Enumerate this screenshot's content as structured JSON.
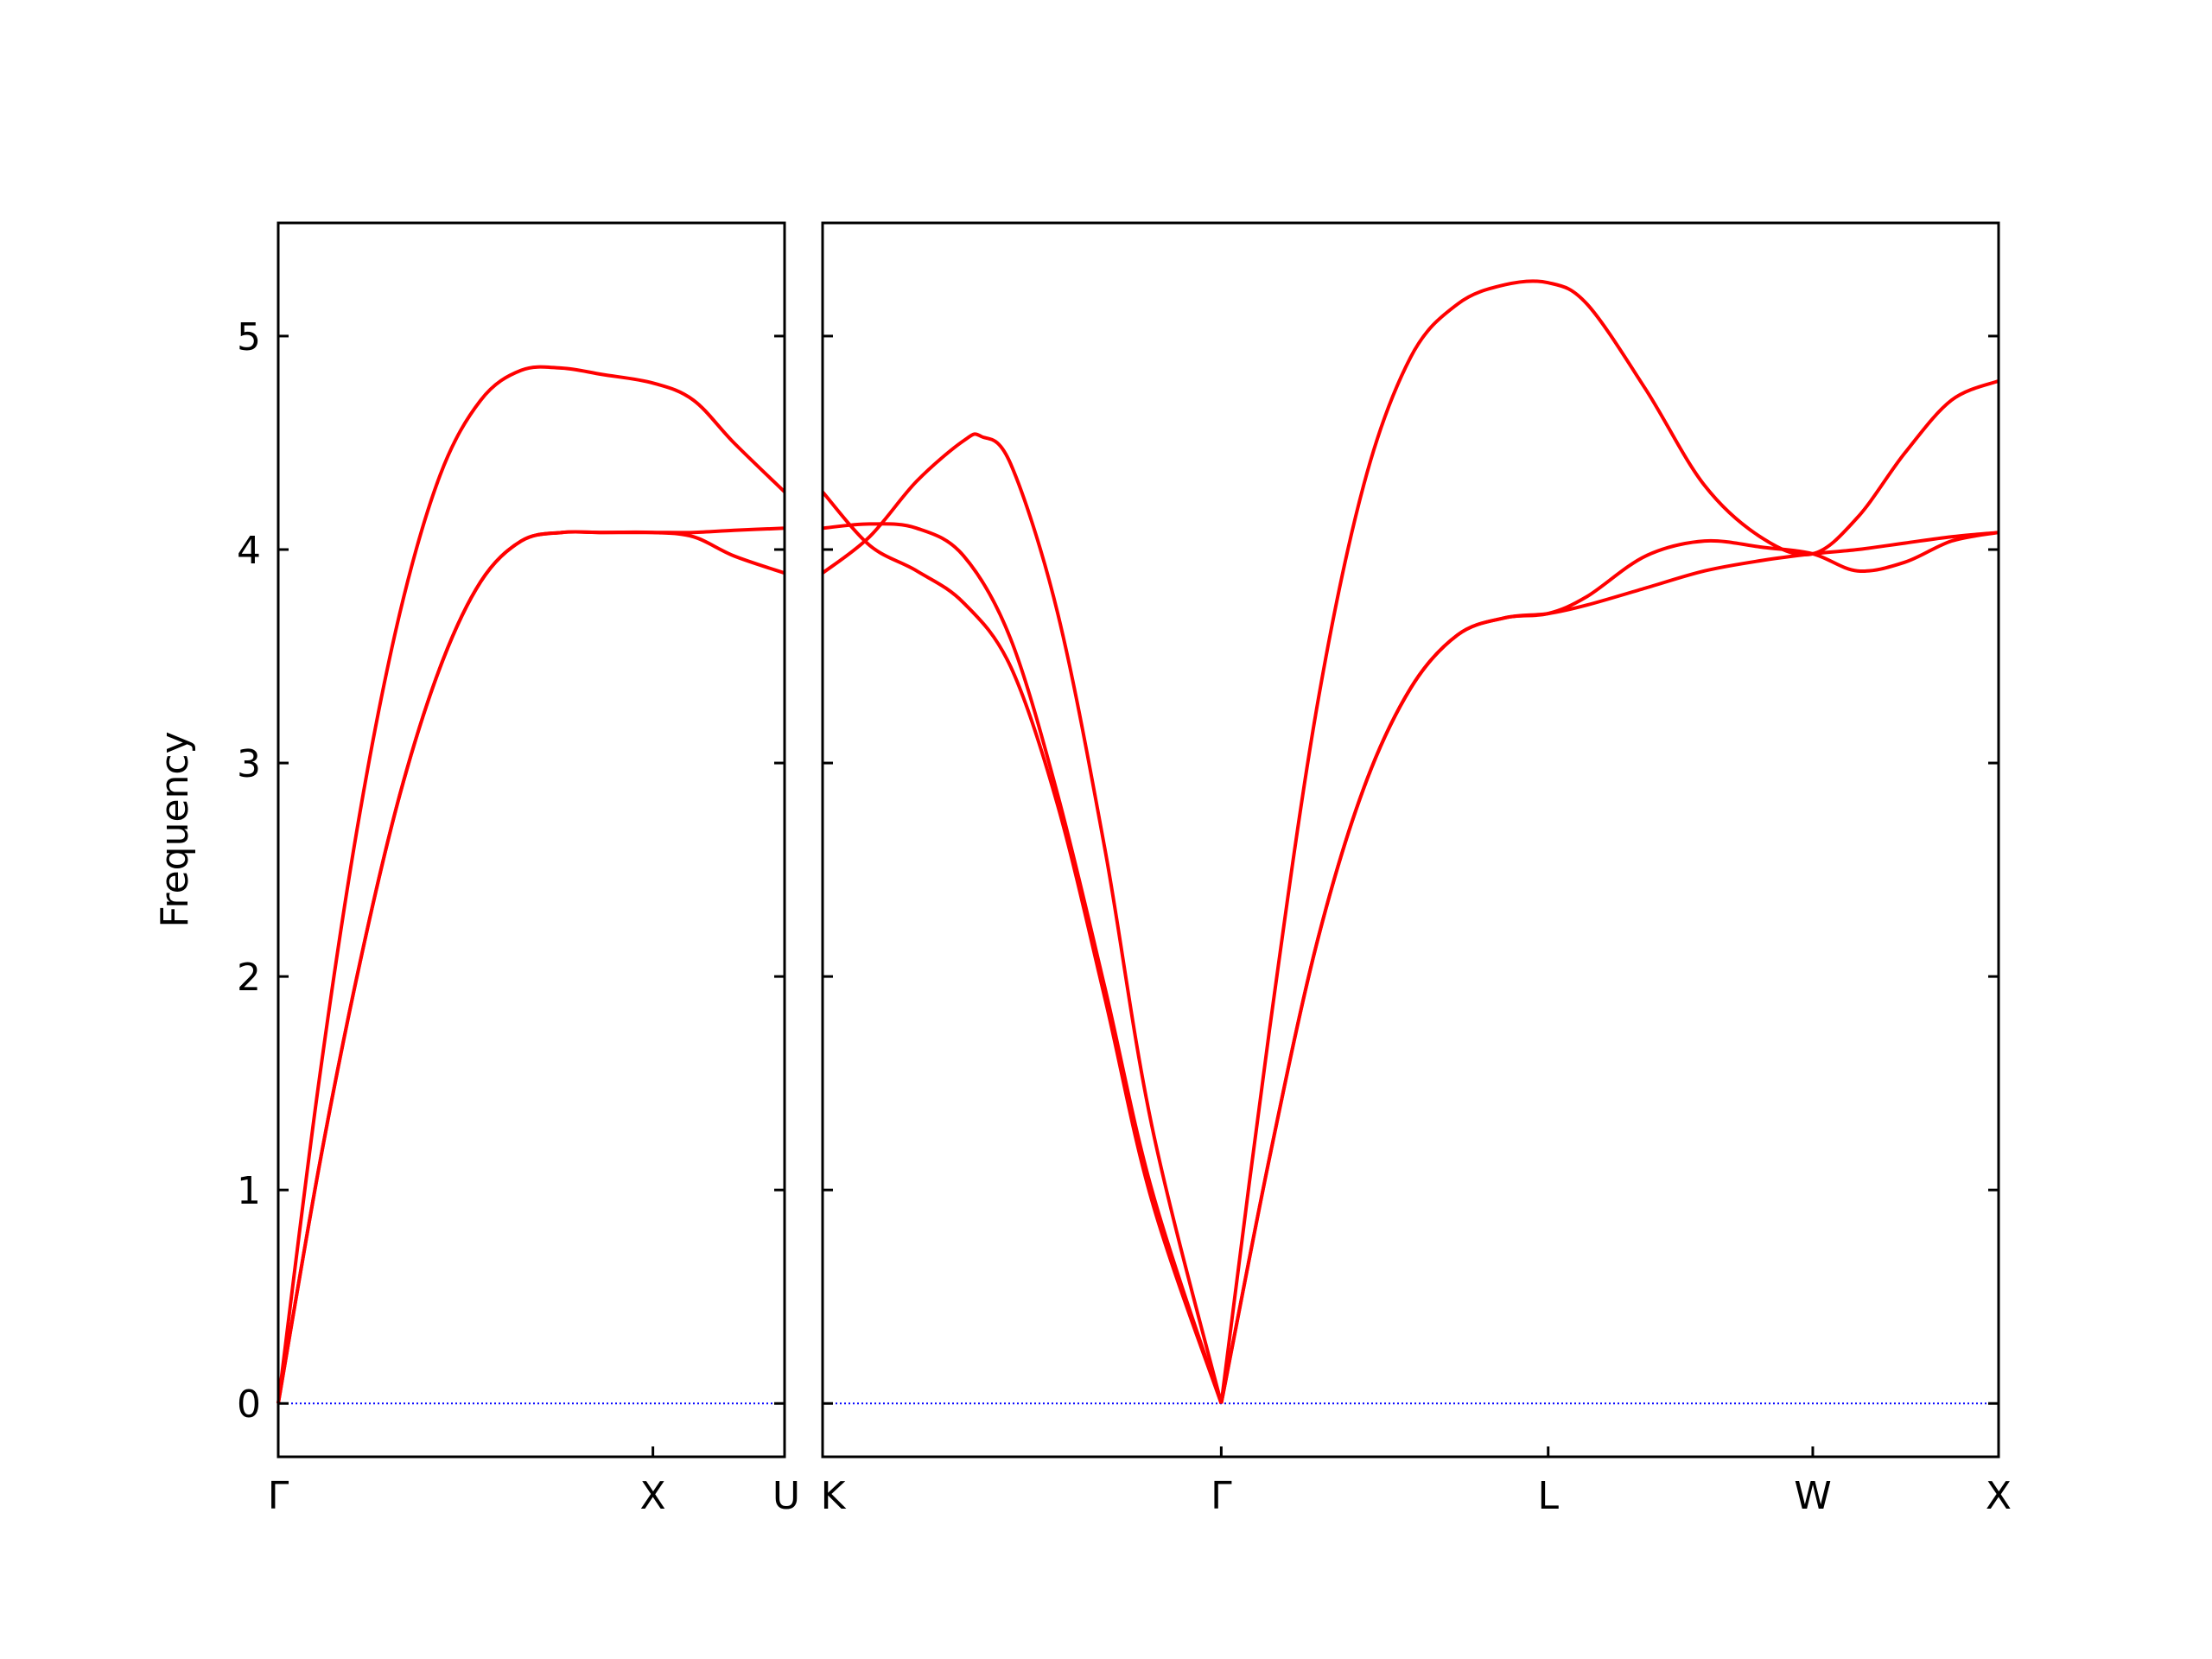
{
  "chart_data": {
    "type": "line",
    "title": "",
    "ylabel": "Frequency",
    "ylim": [
      -0.25,
      5.53
    ],
    "yticks": [
      0,
      1,
      2,
      3,
      4,
      5
    ],
    "colors": {
      "bands": "#ff0000",
      "zero_line": "#0000ff",
      "frame": "#000000"
    },
    "panels": [
      {
        "xlim": [
          0,
          1
        ],
        "ticks": [
          {
            "x": 0,
            "label": "Γ"
          },
          {
            "x": 0.74,
            "label": "X"
          },
          {
            "x": 1,
            "label": "U"
          }
        ],
        "series": [
          {
            "x": [
              0,
              0.08,
              0.16,
              0.24,
              0.32,
              0.4,
              0.48,
              0.56,
              0.64,
              0.74,
              0.82,
              0.9,
              1.0
            ],
            "y": [
              0,
              1.5,
              2.75,
              3.7,
              4.35,
              4.7,
              4.84,
              4.85,
              4.82,
              4.78,
              4.7,
              4.5,
              4.27
            ]
          },
          {
            "x": [
              0,
              0.08,
              0.16,
              0.24,
              0.32,
              0.4,
              0.48,
              0.56,
              0.64,
              0.74,
              0.82,
              0.9,
              1.0
            ],
            "y": [
              0,
              1.1,
              2.05,
              2.85,
              3.45,
              3.85,
              4.04,
              4.08,
              4.08,
              4.08,
              4.06,
              3.97,
              3.89
            ]
          },
          {
            "x": [
              0,
              0.08,
              0.16,
              0.24,
              0.32,
              0.4,
              0.48,
              0.56,
              0.64,
              0.74,
              0.82,
              0.9,
              1.0
            ],
            "y": [
              0,
              1.1,
              2.05,
              2.85,
              3.45,
              3.85,
              4.04,
              4.08,
              4.08,
              4.08,
              4.08,
              4.09,
              4.1
            ]
          }
        ]
      },
      {
        "xlim": [
          0,
          1
        ],
        "ticks": [
          {
            "x": 0,
            "label": "K"
          },
          {
            "x": 0.339,
            "label": "Γ"
          },
          {
            "x": 0.617,
            "label": "L"
          },
          {
            "x": 0.842,
            "label": "W"
          },
          {
            "x": 1,
            "label": "X"
          }
        ],
        "series": [
          {
            "x": [
              0,
              0.04,
              0.08,
              0.12,
              0.135,
              0.16,
              0.2,
              0.24,
              0.28,
              0.339,
              0.38,
              0.42,
              0.46,
              0.5,
              0.54,
              0.58,
              0.617,
              0.65,
              0.7,
              0.75,
              0.8,
              0.842,
              0.88,
              0.92,
              0.96,
              1.0
            ],
            "y": [
              3.89,
              4.06,
              4.32,
              4.51,
              4.53,
              4.4,
              3.7,
              2.6,
              1.3,
              0,
              1.75,
              3.25,
              4.3,
              4.9,
              5.15,
              5.24,
              5.25,
              5.15,
              4.75,
              4.3,
              4.05,
              3.98,
              4.15,
              4.45,
              4.7,
              4.79
            ]
          },
          {
            "x": [
              0,
              0.04,
              0.08,
              0.12,
              0.16,
              0.2,
              0.24,
              0.28,
              0.339,
              0.38,
              0.42,
              0.46,
              0.5,
              0.54,
              0.58,
              0.617,
              0.65,
              0.7,
              0.75,
              0.8,
              0.842,
              0.88,
              0.92,
              0.96,
              1.0
            ],
            "y": [
              4.1,
              4.12,
              4.1,
              3.97,
              3.58,
              2.85,
              1.95,
              1.0,
              0,
              1.15,
              2.15,
              2.88,
              3.35,
              3.6,
              3.68,
              3.7,
              3.78,
              3.97,
              4.04,
              4.01,
              3.98,
              3.9,
              3.94,
              4.04,
              4.08
            ]
          },
          {
            "x": [
              0,
              0.04,
              0.08,
              0.12,
              0.16,
              0.2,
              0.24,
              0.28,
              0.339,
              0.38,
              0.42,
              0.46,
              0.5,
              0.54,
              0.58,
              0.617,
              0.65,
              0.7,
              0.75,
              0.8,
              0.842,
              0.88,
              0.92,
              0.96,
              1.0
            ],
            "y": [
              4.27,
              4.02,
              3.9,
              3.75,
              3.45,
              2.8,
              1.9,
              0.95,
              0,
              1.15,
              2.15,
              2.88,
              3.35,
              3.6,
              3.68,
              3.7,
              3.74,
              3.82,
              3.9,
              3.95,
              3.98,
              4.0,
              4.03,
              4.06,
              4.08
            ]
          }
        ]
      }
    ]
  }
}
